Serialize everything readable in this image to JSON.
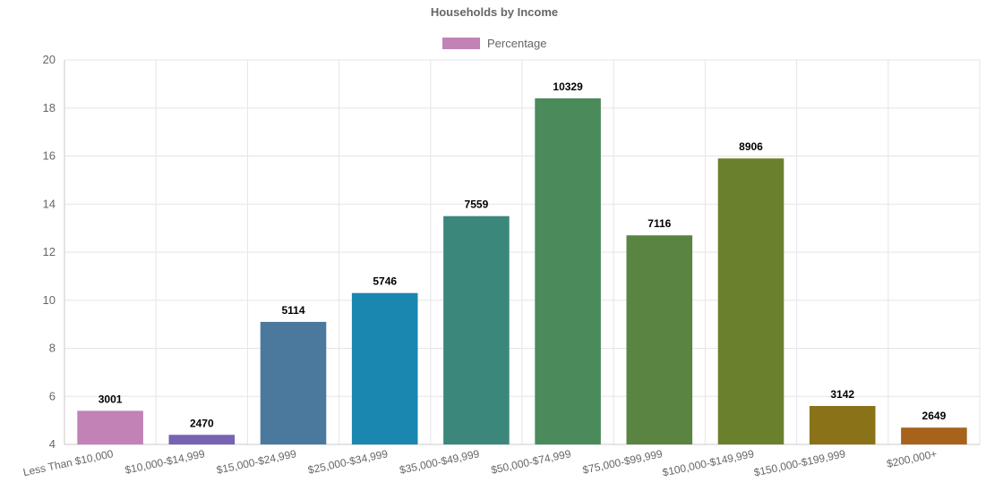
{
  "chart_data": {
    "type": "bar",
    "title": "Households by Income",
    "legend": {
      "position": "top",
      "label": "Percentage",
      "color": "#c282b6"
    },
    "grid": true,
    "xlabel": "",
    "ylabel": "",
    "ylim": [
      4,
      20
    ],
    "yticks": [
      4,
      6,
      8,
      10,
      12,
      14,
      16,
      18,
      20
    ],
    "categories": [
      "Less Than $10,000",
      "$10,000-$14,999",
      "$15,000-$24,999",
      "$25,000-$34,999",
      "$35,000-$49,999",
      "$50,000-$74,999",
      "$75,000-$99,999",
      "$100,000-$149,999",
      "$150,000-$199,999",
      "$200,000+"
    ],
    "series": [
      {
        "name": "Percentage",
        "values": [
          5.4,
          4.4,
          9.1,
          10.3,
          13.5,
          18.4,
          12.7,
          15.9,
          5.6,
          4.7
        ]
      }
    ],
    "data_labels": [
      "3001",
      "2470",
      "5114",
      "5746",
      "7559",
      "10329",
      "7116",
      "8906",
      "3142",
      "2649"
    ],
    "colors": [
      "#c282b6",
      "#7763b2",
      "#4b799e",
      "#1a87b1",
      "#3b877c",
      "#4b8a5a",
      "#5a8441",
      "#6a802d",
      "#8a7219",
      "#a7631b"
    ]
  }
}
